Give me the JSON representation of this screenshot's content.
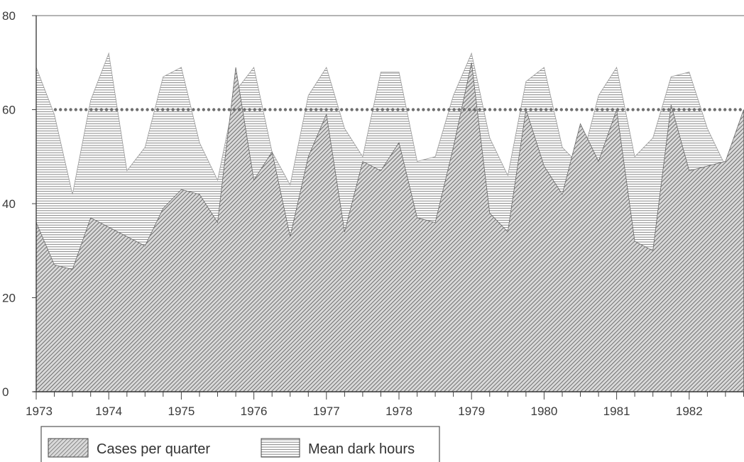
{
  "chart_data": {
    "type": "area",
    "title": "",
    "xlabel": "",
    "ylabel": "",
    "xlim": [
      1973,
      1982.88
    ],
    "ylim": [
      0,
      80
    ],
    "y_ticks": [
      "0",
      "20",
      "40",
      "60",
      "80"
    ],
    "x_ticks": [
      "1973",
      "1974",
      "1975",
      "1976",
      "1977",
      "1978",
      "1979",
      "1980",
      "1981",
      "1982"
    ],
    "grid": false,
    "legend_position": "bottom-left",
    "reference_line": {
      "y": 60,
      "style": "dotted",
      "color": "#6f6f6f"
    },
    "series": [
      {
        "name": "Mean dark hours",
        "fill": "horizontal-hatch",
        "color": "#9a9a9a",
        "x": [
          1973,
          1973.25,
          1973.5,
          1973.75,
          1974,
          1974.25,
          1974.5,
          1974.75,
          1975,
          1975.25,
          1975.5,
          1975.75,
          1976,
          1976.25,
          1976.5,
          1976.75,
          1977,
          1977.25,
          1977.5,
          1977.75,
          1978,
          1978.25,
          1978.5,
          1978.75,
          1979,
          1979.25,
          1979.5,
          1979.75,
          1980,
          1980.25,
          1980.5,
          1980.75,
          1981,
          1981.25,
          1981.5,
          1981.75,
          1982,
          1982.25,
          1982.5,
          1982.75
        ],
        "values": [
          69,
          59,
          42,
          62,
          72,
          47,
          52,
          67,
          69,
          53,
          45,
          64,
          69,
          51,
          44,
          63,
          69,
          56,
          50,
          68,
          68,
          49,
          50,
          63,
          72,
          54,
          46,
          66,
          69,
          52,
          48,
          63,
          69,
          50,
          54,
          67,
          68,
          56,
          48,
          60
        ]
      },
      {
        "name": "Cases per quarter",
        "fill": "diagonal-hatch",
        "color": "#6a6a6a",
        "x": [
          1973,
          1973.25,
          1973.5,
          1973.75,
          1974,
          1974.25,
          1974.5,
          1974.75,
          1975,
          1975.25,
          1975.5,
          1975.75,
          1976,
          1976.25,
          1976.5,
          1976.75,
          1977,
          1977.25,
          1977.5,
          1977.75,
          1978,
          1978.25,
          1978.5,
          1978.75,
          1979,
          1979.25,
          1979.5,
          1979.75,
          1980,
          1980.25,
          1980.5,
          1980.75,
          1981,
          1981.25,
          1981.5,
          1981.75,
          1982,
          1982.25,
          1982.5,
          1982.75
        ],
        "values": [
          36,
          27,
          26,
          37,
          35,
          33,
          31,
          39,
          43,
          42,
          36,
          69,
          45,
          51,
          33,
          50,
          59,
          34,
          49,
          47,
          53,
          37,
          36,
          52,
          70,
          38,
          34,
          60,
          48,
          42,
          57,
          49,
          60,
          32,
          30,
          61,
          47,
          48,
          49,
          60
        ]
      }
    ]
  }
}
